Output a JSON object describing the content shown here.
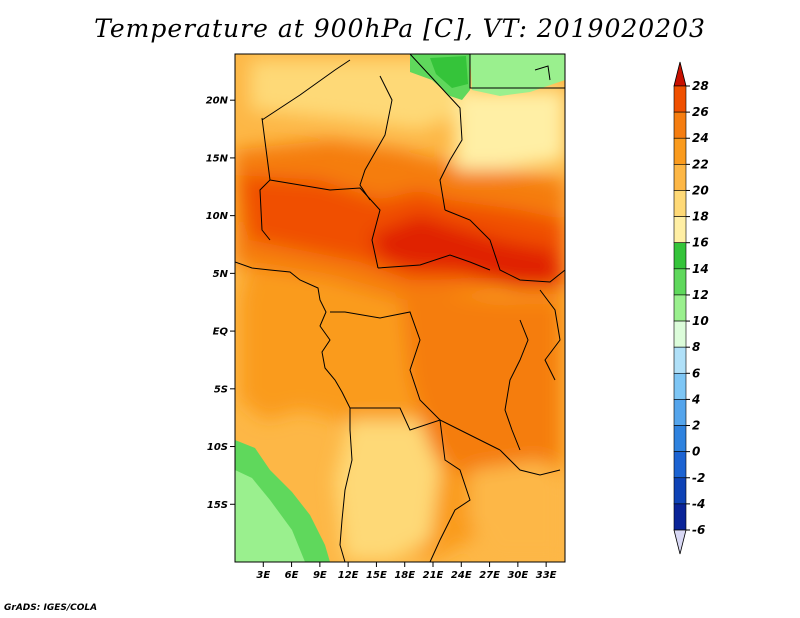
{
  "title": "Temperature at 900hPa [C], VT: 2019020203",
  "credit": "GrADS: IGES/COLA",
  "map": {
    "lat_range": [
      -20,
      24
    ],
    "lon_range": [
      0,
      35
    ],
    "lat_ticks": [
      {
        "lat": 20,
        "label": "20N"
      },
      {
        "lat": 15,
        "label": "15N"
      },
      {
        "lat": 10,
        "label": "10N"
      },
      {
        "lat": 5,
        "label": "5N"
      },
      {
        "lat": 0,
        "label": "EQ"
      },
      {
        "lat": -5,
        "label": "5S"
      },
      {
        "lat": -10,
        "label": "10S"
      },
      {
        "lat": -15,
        "label": "15S"
      }
    ],
    "lon_ticks": [
      {
        "lon": 3,
        "label": "3E"
      },
      {
        "lon": 6,
        "label": "6E"
      },
      {
        "lon": 9,
        "label": "9E"
      },
      {
        "lon": 12,
        "label": "12E"
      },
      {
        "lon": 15,
        "label": "15E"
      },
      {
        "lon": 18,
        "label": "18E"
      },
      {
        "lon": 21,
        "label": "21E"
      },
      {
        "lon": 24,
        "label": "24E"
      },
      {
        "lon": 27,
        "label": "27E"
      },
      {
        "lon": 30,
        "label": "30E"
      },
      {
        "lon": 33,
        "label": "33E"
      }
    ]
  },
  "colorbar": {
    "levels": [
      "28",
      "26",
      "24",
      "22",
      "20",
      "18",
      "16",
      "14",
      "12",
      "10",
      "8",
      "6",
      "4",
      "2",
      "0",
      "-2",
      "-4",
      "-6"
    ],
    "colors": [
      "#e02000",
      "#f05000",
      "#f57d10",
      "#fa9b1e",
      "#fdb746",
      "#fed977",
      "#ffefa5",
      "#35c43a",
      "#5fd85c",
      "#9af08e",
      "#dcfcda",
      "#b0e0f8",
      "#7ec6f5",
      "#55a5ec",
      "#2f82de",
      "#1c63d2",
      "#0e43b6",
      "#0a2498",
      "#0a0a78"
    ],
    "bottom_color": "#d8d8f4",
    "top_color": "#c81000"
  }
}
